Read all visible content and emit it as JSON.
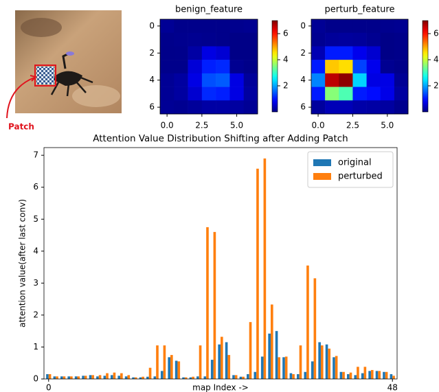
{
  "photo_label": "Patch",
  "chart_data": [
    {
      "type": "heatmap",
      "title": "benign_feature",
      "z": [
        [
          0.15,
          0.08,
          0.08,
          0.08,
          0.08,
          0.1,
          0.12
        ],
        [
          0.08,
          0.1,
          0.12,
          0.1,
          0.08,
          0.05,
          0.05
        ],
        [
          0.07,
          0.08,
          0.25,
          0.68,
          0.57,
          0.05,
          0.05
        ],
        [
          0.08,
          0.08,
          0.6,
          1.08,
          1.15,
          0.12,
          0.07
        ],
        [
          0.15,
          0.22,
          0.7,
          1.42,
          1.5,
          0.68,
          0.18
        ],
        [
          0.15,
          0.22,
          0.55,
          1.15,
          1.08,
          0.68,
          0.22
        ],
        [
          0.15,
          0.12,
          0.18,
          0.25,
          0.25,
          0.22,
          0.15
        ]
      ],
      "colormap": "jet",
      "zlim": [
        0,
        7
      ],
      "zticks": [
        2,
        4,
        6
      ],
      "xlim": [
        -0.5,
        6.5
      ],
      "xticks": [
        {
          "value": 0,
          "label": "0.0"
        },
        {
          "value": 2.5,
          "label": "2.5"
        },
        {
          "value": 5,
          "label": "5.0"
        }
      ],
      "ylim": [
        6.5,
        -0.5
      ],
      "yticks": [
        0,
        2,
        4,
        6
      ]
    },
    {
      "type": "heatmap",
      "title": "perturb_feature",
      "z": [
        [
          0.15,
          0.08,
          0.08,
          0.08,
          0.08,
          0.1,
          0.12
        ],
        [
          0.12,
          0.18,
          0.2,
          0.18,
          0.12,
          0.05,
          0.07
        ],
        [
          0.35,
          1.05,
          1.05,
          0.75,
          0.55,
          0.05,
          0.07
        ],
        [
          1.05,
          4.75,
          4.6,
          1.32,
          0.75,
          0.12,
          0.07
        ],
        [
          1.78,
          6.58,
          6.9,
          2.33,
          0.68,
          0.7,
          0.15
        ],
        [
          1.05,
          3.55,
          3.15,
          1.05,
          0.95,
          0.72,
          0.22
        ],
        [
          0.2,
          0.38,
          0.38,
          0.28,
          0.25,
          0.22,
          0.1
        ]
      ],
      "colormap": "jet",
      "zlim": [
        0,
        7
      ],
      "zticks": [
        2,
        4,
        6
      ],
      "xlim": [
        -0.5,
        6.5
      ],
      "xticks": [
        {
          "value": 0,
          "label": "0.0"
        },
        {
          "value": 2.5,
          "label": "2.5"
        },
        {
          "value": 5,
          "label": "5.0"
        }
      ],
      "ylim": [
        6.5,
        -0.5
      ],
      "yticks": [
        0,
        2,
        4,
        6
      ]
    },
    {
      "type": "bar",
      "title": "Attention Value Distribution Shifting after Adding Patch",
      "x_label": "map Index ->",
      "y_label": "attention value(after last conv)",
      "x": [
        0,
        1,
        2,
        3,
        4,
        5,
        6,
        7,
        8,
        9,
        10,
        11,
        12,
        13,
        14,
        15,
        16,
        17,
        18,
        19,
        20,
        21,
        22,
        23,
        24,
        25,
        26,
        27,
        28,
        29,
        30,
        31,
        32,
        33,
        34,
        35,
        36,
        37,
        38,
        39,
        40,
        41,
        42,
        43,
        44,
        45,
        46,
        47,
        48
      ],
      "series": [
        {
          "name": "original",
          "color": "#1f77b4",
          "values": [
            0.15,
            0.08,
            0.08,
            0.08,
            0.08,
            0.1,
            0.12,
            0.08,
            0.1,
            0.12,
            0.1,
            0.08,
            0.05,
            0.05,
            0.07,
            0.08,
            0.25,
            0.68,
            0.57,
            0.05,
            0.05,
            0.08,
            0.08,
            0.6,
            1.08,
            1.15,
            0.12,
            0.07,
            0.15,
            0.22,
            0.7,
            1.42,
            1.5,
            0.68,
            0.18,
            0.15,
            0.22,
            0.55,
            1.15,
            1.08,
            0.68,
            0.22,
            0.15,
            0.12,
            0.18,
            0.25,
            0.25,
            0.22,
            0.15
          ]
        },
        {
          "name": "perturbed",
          "color": "#ff7f0e",
          "values": [
            0.15,
            0.08,
            0.08,
            0.08,
            0.08,
            0.1,
            0.12,
            0.12,
            0.18,
            0.2,
            0.18,
            0.12,
            0.05,
            0.07,
            0.35,
            1.05,
            1.05,
            0.75,
            0.55,
            0.05,
            0.07,
            1.05,
            4.75,
            4.6,
            1.32,
            0.75,
            0.12,
            0.07,
            1.78,
            6.58,
            6.9,
            2.33,
            0.68,
            0.7,
            0.15,
            1.05,
            3.55,
            3.15,
            1.05,
            0.95,
            0.72,
            0.22,
            0.2,
            0.38,
            0.38,
            0.28,
            0.25,
            0.22,
            0.1
          ]
        }
      ],
      "xlim": [
        -0.65,
        48.65
      ],
      "xticks": [
        0,
        48
      ],
      "ylim": [
        0,
        7.24
      ],
      "yticks": [
        0,
        1,
        2,
        3,
        4,
        5,
        6,
        7
      ],
      "legend": "upper right"
    }
  ]
}
